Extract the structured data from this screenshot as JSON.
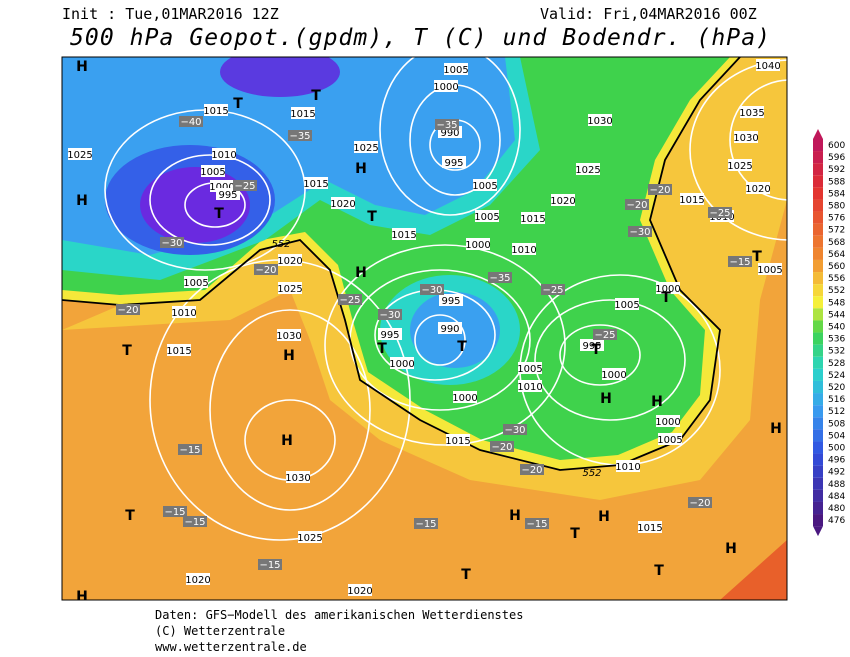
{
  "header": {
    "init": "Init : Tue,01MAR2016 12Z",
    "valid": "Valid: Fri,04MAR2016 00Z",
    "title": "500 hPa Geopot.(gpdm), T (C) und Bodendr. (hPa)"
  },
  "colorbar": {
    "values": [
      600,
      596,
      592,
      588,
      584,
      580,
      576,
      572,
      568,
      564,
      560,
      556,
      552,
      548,
      544,
      540,
      536,
      532,
      528,
      524,
      520,
      516,
      512,
      508,
      504,
      500,
      496,
      492,
      488,
      484,
      480,
      476
    ]
  },
  "map": {
    "isobar_labels": [
      "1040",
      "1035",
      "1030",
      "1025",
      "1020",
      "1015",
      "1010",
      "1005",
      "1000",
      "1005",
      "995",
      "1000",
      "1000",
      "1005",
      "1010",
      "1015",
      "1030",
      "1025",
      "1020",
      "1015",
      "1010",
      "1005",
      "1000",
      "990",
      "995",
      "1005",
      "1005",
      "1000",
      "995",
      "990",
      "995",
      "1000",
      "1005",
      "1010",
      "1000",
      "1015",
      "1025",
      "1020",
      "1015",
      "1015",
      "1015",
      "1015",
      "1010",
      "1005",
      "1000",
      "995",
      "1025",
      "1020",
      "1025",
      "1005",
      "1010",
      "1015",
      "1030",
      "1030",
      "1025",
      "1020",
      "1020"
    ],
    "temp_labels": [
      "−40",
      "−35",
      "−35",
      "−30",
      "−30",
      "−25",
      "−25",
      "−20",
      "−20",
      "−25",
      "−30",
      "−35",
      "−30",
      "−25",
      "−20",
      "−20",
      "−15",
      "−15",
      "−15",
      "−15",
      "−15",
      "−15",
      "−20",
      "−25",
      "−30",
      "−20",
      "−15",
      "−20"
    ],
    "centers": [
      "H",
      "T",
      "T",
      "T",
      "H",
      "H",
      "T",
      "H",
      "T",
      "T",
      "T",
      "H",
      "H",
      "T",
      "T",
      "H",
      "H",
      "T",
      "H",
      "H",
      "T",
      "T",
      "H",
      "H",
      "T",
      "T",
      "H"
    ],
    "contour_labels": [
      "552",
      "552"
    ]
  },
  "footer": {
    "line1": "Daten: GFS−Modell des amerikanischen Wetterdienstes",
    "line2": "(C) Wetterzentrale",
    "line3": "www.wetterzentrale.de"
  }
}
